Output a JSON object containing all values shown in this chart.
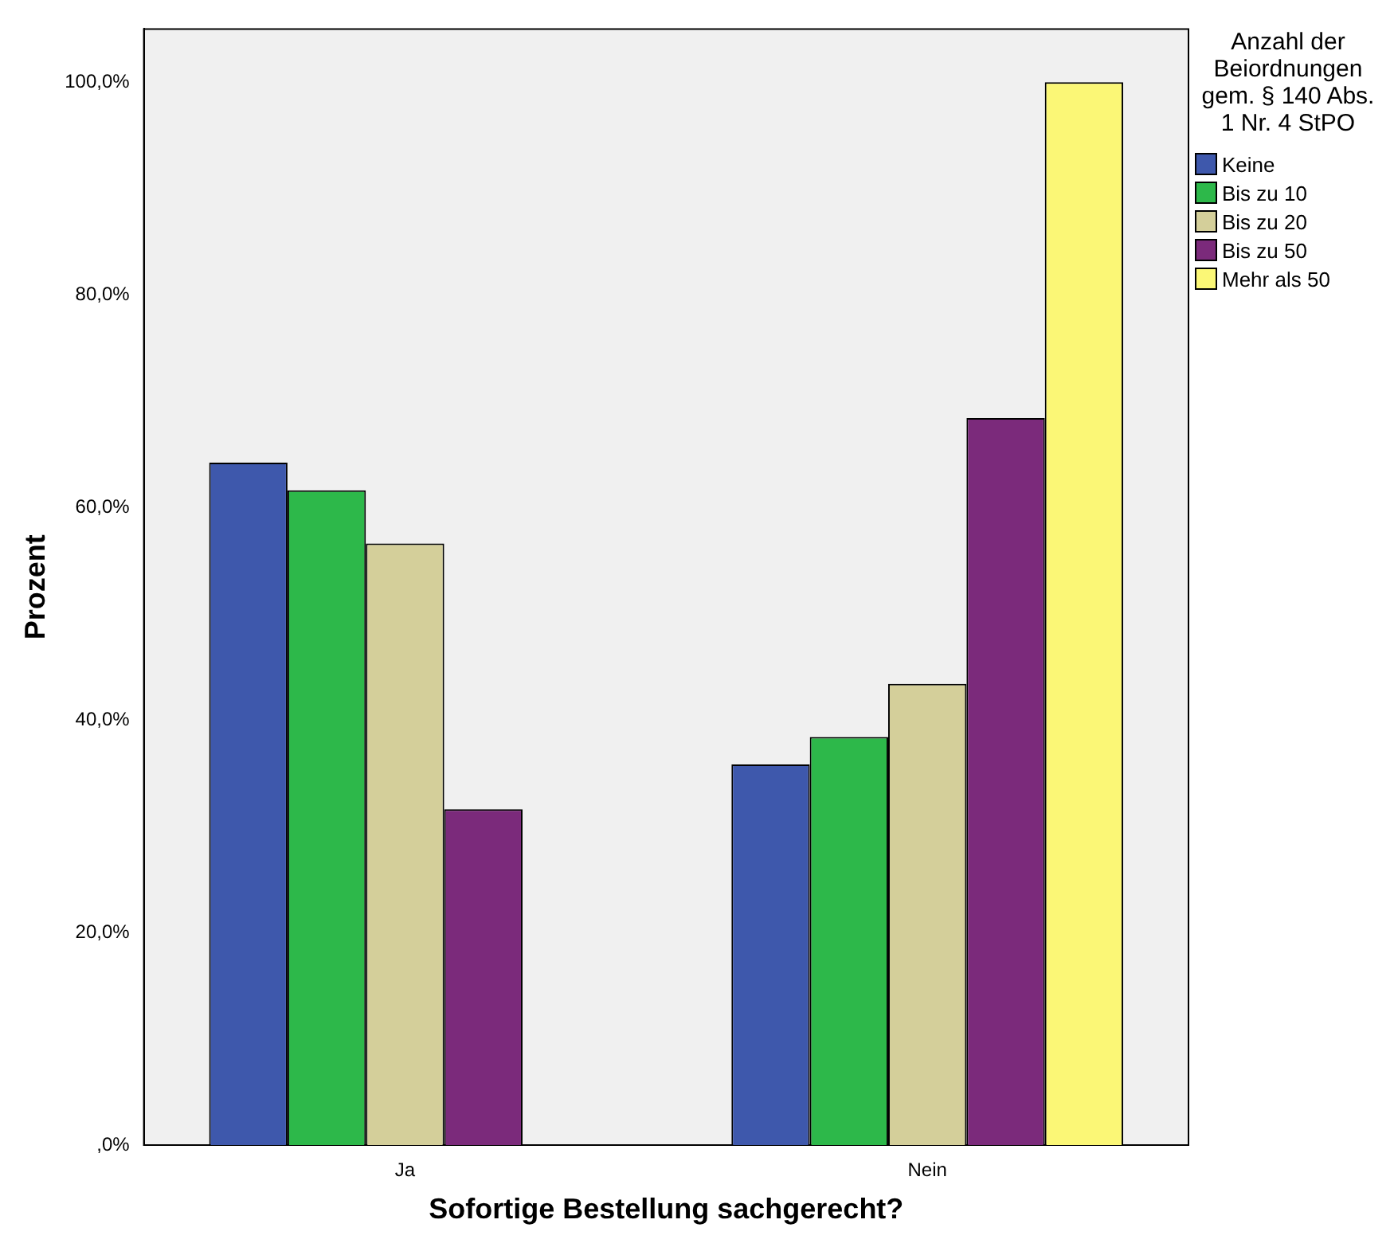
{
  "chart_data": {
    "type": "bar",
    "xlabel": "Sofortige Bestellung sachgerecht?",
    "ylabel": "Prozent",
    "legend_title": "Anzahl der Beiordnungen gem. § 140 Abs. 1 Nr. 4 StPO",
    "legend": "right",
    "grid": false,
    "categories": [
      "Ja",
      "Nein"
    ],
    "ylim": [
      0,
      105
    ],
    "yticks": [
      {
        "value": 0,
        "label": ",0%"
      },
      {
        "value": 20,
        "label": "20,0%"
      },
      {
        "value": 40,
        "label": "40,0%"
      },
      {
        "value": 60,
        "label": "60,0%"
      },
      {
        "value": 80,
        "label": "80,0%"
      },
      {
        "value": 100,
        "label": "100,0%"
      }
    ],
    "series": [
      {
        "name": "Keine",
        "color": "#3e58ac",
        "values": [
          64.2,
          35.8
        ]
      },
      {
        "name": "Bis zu 10",
        "color": "#2db84a",
        "values": [
          61.6,
          38.4
        ]
      },
      {
        "name": "Bis zu 20",
        "color": "#d4cf9a",
        "values": [
          56.6,
          43.4
        ]
      },
      {
        "name": "Bis zu 50",
        "color": "#7b2a7b",
        "values": [
          31.6,
          68.4
        ]
      },
      {
        "name": "Mehr als 50",
        "color": "#fbf776",
        "values": [
          0,
          100
        ]
      }
    ]
  }
}
